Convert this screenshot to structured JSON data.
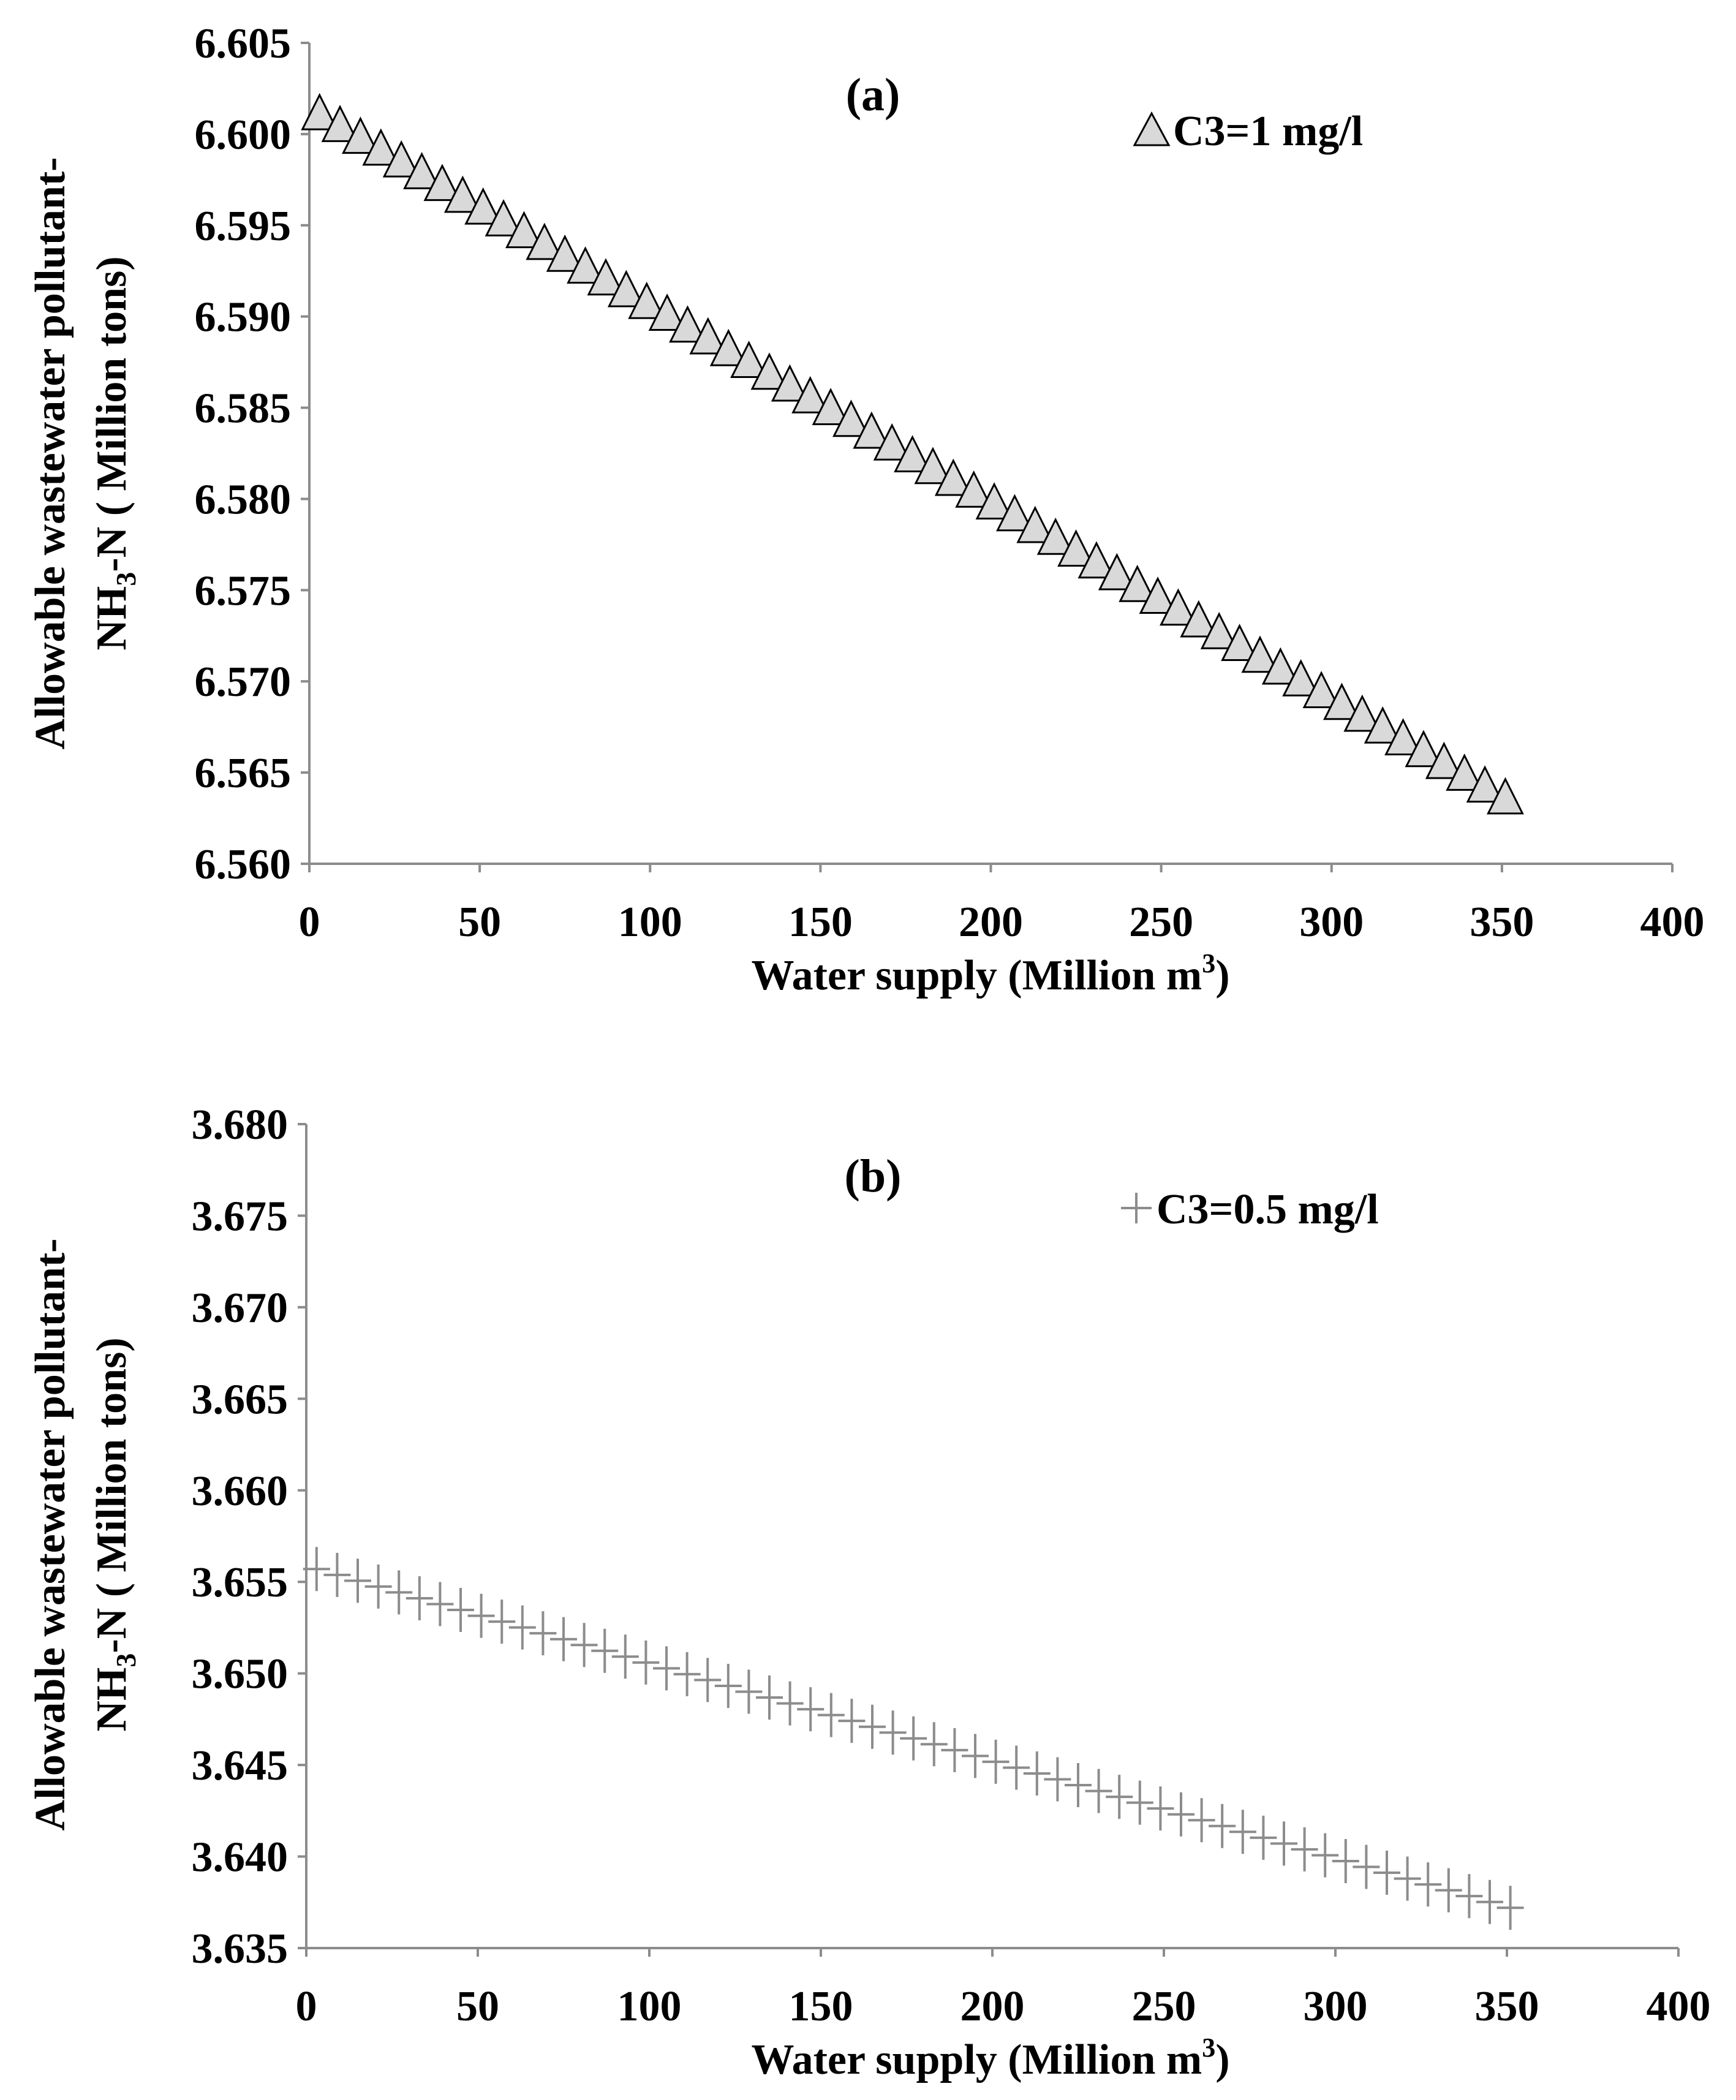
{
  "chart_data": [
    {
      "type": "scatter",
      "panel_label": "(a)",
      "series": [
        {
          "name": "C3=1 mg/l",
          "marker": "triangle",
          "marker_fill": "#d9d9d9",
          "marker_stroke": "#000000",
          "x_start": 3,
          "x_end": 351,
          "x_step": 6,
          "y_start": 6.6012,
          "y_end": 6.5637
        }
      ],
      "xlabel": "Water supply (Million m",
      "xlabel_sup": "3",
      "xlabel_close": ")",
      "ylabel_line1": "Allowable wastewater pollutant-",
      "ylabel_line2_a": "NH",
      "ylabel_line2_sub": "3",
      "ylabel_line2_b": "-N ( Million tons)",
      "xlim": [
        0,
        400
      ],
      "ylim": [
        6.56,
        6.605
      ],
      "x_ticks": [
        "0",
        "50",
        "100",
        "150",
        "200",
        "250",
        "300",
        "350",
        "400"
      ],
      "y_ticks": [
        "6.560",
        "6.565",
        "6.570",
        "6.575",
        "6.580",
        "6.585",
        "6.590",
        "6.595",
        "6.600",
        "6.605"
      ],
      "legend_position": "top-right",
      "grid": false
    },
    {
      "type": "scatter",
      "panel_label": "(b)",
      "series": [
        {
          "name": "C3=0.5 mg/l",
          "marker": "plus",
          "marker_stroke": "#8c8c8c",
          "x_start": 3,
          "x_end": 351,
          "x_step": 6,
          "y_start": 3.6557,
          "y_end": 3.6372
        }
      ],
      "xlabel": "Water supply (Million m",
      "xlabel_sup": "3",
      "xlabel_close": ")",
      "ylabel_line1": "Allowable wastewater pollutant-",
      "ylabel_line2_a": "NH",
      "ylabel_line2_sub": "3",
      "ylabel_line2_b": "-N ( Million tons)",
      "xlim": [
        0,
        400
      ],
      "ylim": [
        3.635,
        3.68
      ],
      "x_ticks": [
        "0",
        "50",
        "100",
        "150",
        "200",
        "250",
        "300",
        "350",
        "400"
      ],
      "y_ticks": [
        "3.635",
        "3.640",
        "3.645",
        "3.650",
        "3.655",
        "3.660",
        "3.665",
        "3.670",
        "3.675",
        "3.680"
      ],
      "legend_position": "top-right",
      "grid": false
    }
  ]
}
